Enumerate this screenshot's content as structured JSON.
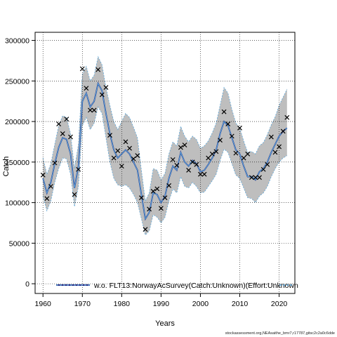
{
  "chart_data": {
    "type": "line",
    "xlabel": "Years",
    "ylabel": "Catch",
    "xlim": [
      1958,
      2024
    ],
    "ylim": [
      -12000,
      310000
    ],
    "x_ticks": [
      1960,
      1970,
      1980,
      1990,
      2000,
      2010,
      2020
    ],
    "y_ticks": [
      0,
      50000,
      100000,
      150000,
      200000,
      250000,
      300000
    ],
    "grid": true,
    "legend_placement": "bottom",
    "colors": {
      "band": "#bebebe",
      "series_dark": "#1a1a7a",
      "series_light": "#5aa7dc",
      "observed": "#000000"
    },
    "series": [
      {
        "name": "w.o. FLT13:NorwayAcSurvey(Catch:Unknown)(Effort:Unknown",
        "x": [
          1960,
          1961,
          1962,
          1963,
          1964,
          1965,
          1966,
          1967,
          1968,
          1969,
          1970,
          1971,
          1972,
          1973,
          1974,
          1975,
          1976,
          1977,
          1978,
          1979,
          1980,
          1981,
          1982,
          1983,
          1984,
          1985,
          1986,
          1987,
          1988,
          1989,
          1990,
          1991,
          1992,
          1993,
          1994,
          1995,
          1996,
          1997,
          1998,
          1999,
          2000,
          2001,
          2002,
          2003,
          2004,
          2005,
          2006,
          2007,
          2008,
          2009,
          2010,
          2011,
          2012,
          2013,
          2014,
          2015,
          2016,
          2017,
          2018,
          2019,
          2020,
          2021,
          2022
        ],
        "values": [
          130000,
          112000,
          125000,
          148000,
          168000,
          180000,
          178000,
          160000,
          118000,
          145000,
          225000,
          235000,
          218000,
          225000,
          247000,
          238000,
          210000,
          185000,
          165000,
          155000,
          160000,
          165000,
          160000,
          150000,
          140000,
          110000,
          80000,
          88000,
          112000,
          110000,
          100000,
          108000,
          130000,
          145000,
          140000,
          162000,
          150000,
          145000,
          152000,
          148000,
          138000,
          140000,
          147000,
          155000,
          165000,
          185000,
          200000,
          195000,
          180000,
          165000,
          160000,
          145000,
          132000,
          132000,
          128000,
          138000,
          142000,
          150000,
          162000,
          172000,
          182000,
          188000,
          192000
        ],
        "ci_lower": [
          108000,
          90000,
          102000,
          125000,
          142000,
          155000,
          154000,
          135000,
          95000,
          120000,
          195000,
          205000,
          190000,
          198000,
          218000,
          210000,
          180000,
          150000,
          130000,
          122000,
          120000,
          122000,
          118000,
          110000,
          100000,
          80000,
          60000,
          65000,
          85000,
          82000,
          75000,
          82000,
          102000,
          117000,
          112000,
          132000,
          120000,
          118000,
          125000,
          120000,
          112000,
          113000,
          120000,
          127000,
          135000,
          152000,
          166000,
          162000,
          148000,
          134000,
          130000,
          118000,
          106000,
          105000,
          100000,
          108000,
          112000,
          120000,
          132000,
          142000,
          150000,
          155000,
          158000
        ],
        "ci_upper": [
          155000,
          135000,
          148000,
          172000,
          195000,
          207000,
          205000,
          185000,
          142000,
          172000,
          258000,
          268000,
          250000,
          257000,
          280000,
          270000,
          242000,
          220000,
          200000,
          190000,
          200000,
          210000,
          205000,
          193000,
          180000,
          140000,
          102000,
          112000,
          142000,
          140000,
          128000,
          136000,
          160000,
          175000,
          170000,
          194000,
          182000,
          175000,
          182000,
          178000,
          167000,
          170000,
          176000,
          186000,
          198000,
          220000,
          242000,
          235000,
          215000,
          198000,
          192000,
          176000,
          162000,
          163000,
          160000,
          170000,
          174000,
          184000,
          196000,
          206000,
          220000,
          230000,
          240000
        ]
      }
    ],
    "observed": {
      "x": [
        1960,
        1961,
        1962,
        1963,
        1964,
        1965,
        1966,
        1967,
        1968,
        1969,
        1970,
        1971,
        1972,
        1973,
        1974,
        1975,
        1976,
        1977,
        1978,
        1979,
        1980,
        1981,
        1982,
        1983,
        1984,
        1985,
        1986,
        1987,
        1988,
        1989,
        1990,
        1991,
        1992,
        1993,
        1994,
        1995,
        1996,
        1997,
        1998,
        1999,
        2000,
        2001,
        2002,
        2003,
        2004,
        2005,
        2006,
        2007,
        2008,
        2009,
        2010,
        2011,
        2012,
        2013,
        2014,
        2015,
        2016,
        2017,
        2018,
        2019,
        2020,
        2021,
        2022
      ],
      "values": [
        134000,
        105000,
        120000,
        149000,
        197000,
        185000,
        203000,
        181000,
        110000,
        141000,
        265000,
        241000,
        214000,
        214000,
        264000,
        233000,
        242000,
        183000,
        155000,
        164000,
        145000,
        175000,
        167000,
        154000,
        158000,
        106000,
        67000,
        92000,
        114000,
        117000,
        93000,
        106000,
        121000,
        153000,
        146000,
        168000,
        171000,
        140000,
        150000,
        147000,
        135000,
        135000,
        155000,
        160000,
        163000,
        177000,
        212000,
        197000,
        182000,
        161000,
        192000,
        155000,
        160000,
        131000,
        131000,
        131000,
        141000,
        147000,
        181000,
        162000,
        169000,
        188000,
        205000
      ]
    }
  },
  "footer": "stockassessment.org,NEAsaithe_bmr7,r17787,gitsc2c2a0c6dde"
}
